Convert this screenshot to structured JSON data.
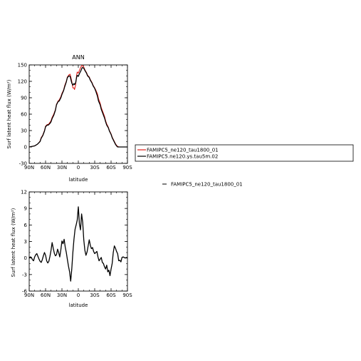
{
  "chart_data": [
    {
      "type": "line",
      "title": "ANN",
      "xlabel": "latitude",
      "ylabel": "Surf latent heat flux (W/m²)",
      "xlim": [
        90,
        -90
      ],
      "ylim": [
        -30,
        150
      ],
      "x_ticks": [
        90,
        60,
        30,
        0,
        -30,
        -60,
        -90
      ],
      "x_tick_labels": [
        "90N",
        "60N",
        "30N",
        "0",
        "30S",
        "60S",
        "90S"
      ],
      "y_ticks": [
        -30,
        0,
        30,
        60,
        90,
        120,
        150
      ],
      "y_tick_labels": [
        "-30",
        "0",
        "30",
        "60",
        "90",
        "120",
        "150"
      ],
      "legend_position": "right, boxed",
      "x": [
        90,
        85,
        80,
        75,
        72,
        70,
        68,
        65,
        62,
        60,
        57,
        55,
        52,
        50,
        48,
        45,
        42,
        40,
        37,
        35,
        32,
        30,
        27,
        25,
        22,
        20,
        17,
        15,
        12,
        10,
        8,
        7,
        5,
        3,
        2,
        0,
        -2,
        -5,
        -7,
        -8,
        -10,
        -12,
        -15,
        -17,
        -20,
        -22,
        -25,
        -27,
        -30,
        -32,
        -35,
        -37,
        -40,
        -42,
        -45,
        -48,
        -50,
        -52,
        -55,
        -57,
        -60,
        -62,
        -65,
        -68,
        -70,
        -72,
        -75,
        -80,
        -85,
        -90
      ],
      "series": [
        {
          "name": "FAMIPC5_ne120_tau1800_01",
          "color": "#e0201b",
          "values": [
            0,
            1,
            2,
            5,
            8,
            11,
            17,
            22,
            30,
            38,
            41,
            41,
            45,
            48,
            54,
            60,
            68,
            78,
            84,
            86,
            92,
            98,
            104,
            112,
            120,
            128,
            132,
            133,
            120,
            108,
            108,
            105,
            113,
            132,
            137,
            135,
            140,
            147,
            149,
            148,
            146,
            141,
            136,
            131,
            128,
            123,
            118,
            113,
            108,
            104,
            97,
            88,
            80,
            72,
            64,
            56,
            48,
            42,
            36,
            30,
            24,
            18,
            12,
            6,
            3,
            1,
            0,
            0,
            0,
            0
          ]
        },
        {
          "name": "FAMIPC5.ne120.ys.tau5m.02",
          "color": "#000000",
          "values": [
            0,
            1,
            2,
            5,
            8,
            10,
            16,
            21,
            29,
            37,
            40,
            40,
            43,
            46,
            52,
            58,
            67,
            77,
            83,
            84,
            90,
            96,
            103,
            110,
            119,
            127,
            130,
            129,
            117,
            113,
            116,
            114,
            117,
            128,
            131,
            129,
            134,
            140,
            145,
            145,
            144,
            140,
            135,
            130,
            127,
            122,
            117,
            112,
            107,
            102,
            93,
            84,
            77,
            69,
            61,
            53,
            46,
            40,
            35,
            29,
            23,
            17,
            11,
            5,
            2,
            0,
            0,
            0,
            0,
            0
          ]
        }
      ]
    },
    {
      "type": "line",
      "title": "",
      "xlabel": "latitude",
      "ylabel": "Surf latent heat flux (W/m²)",
      "xlim": [
        90,
        -90
      ],
      "ylim": [
        -6,
        12
      ],
      "x_ticks": [
        90,
        60,
        30,
        0,
        -30,
        -60,
        -90
      ],
      "x_tick_labels": [
        "90N",
        "60N",
        "30N",
        "0",
        "30S",
        "60S",
        "90S"
      ],
      "y_ticks": [
        -6,
        -3,
        0,
        3,
        6,
        9,
        12
      ],
      "y_tick_labels": [
        "-6",
        "-3",
        "0",
        "3",
        "6",
        "9",
        "12"
      ],
      "legend_position": "right",
      "x": [
        90,
        88,
        86,
        84,
        82,
        80,
        78,
        76,
        74,
        72,
        70,
        68,
        66,
        64,
        62,
        60,
        58,
        56,
        54,
        52,
        50,
        48,
        46,
        44,
        42,
        40,
        38,
        36,
        34,
        32,
        30,
        28,
        26,
        24,
        22,
        20,
        18,
        16,
        14,
        12,
        10,
        8,
        6,
        4,
        2,
        0,
        -2,
        -4,
        -6,
        -8,
        -10,
        -12,
        -14,
        -16,
        -18,
        -20,
        -22,
        -24,
        -26,
        -28,
        -30,
        -32,
        -34,
        -36,
        -38,
        -40,
        -42,
        -44,
        -46,
        -48,
        -50,
        -52,
        -54,
        -56,
        -58,
        -60,
        -62,
        -64,
        -66,
        -68,
        -70,
        -72,
        -74,
        -76,
        -78,
        -80,
        -82,
        -84,
        -86,
        -88,
        -90
      ],
      "series": [
        {
          "name": "FAMIPC5_ne120_tau1800_01",
          "color": "#000000",
          "values": [
            0,
            0.2,
            0.1,
            -0.3,
            -0.5,
            0.2,
            0.6,
            0.8,
            0.3,
            -0.2,
            -0.6,
            -0.8,
            -0.3,
            0.4,
            1.0,
            0.5,
            -0.5,
            -0.9,
            -0.6,
            0.3,
            1.4,
            2.8,
            1.8,
            0.9,
            0.4,
            0.6,
            1.6,
            1.0,
            0.2,
            1.5,
            3.1,
            2.6,
            3.4,
            2.0,
            1.0,
            -0.3,
            -1.5,
            -2.5,
            -4.2,
            -2.0,
            1.0,
            3.4,
            5.2,
            6.0,
            6.9,
            9.3,
            6.2,
            5.1,
            8.0,
            6.5,
            3.3,
            1.4,
            0.5,
            1.1,
            2.2,
            3.3,
            2.3,
            1.7,
            1.9,
            1.2,
            0.8,
            1.0,
            1.2,
            0.2,
            -0.5,
            -0.2,
            0.1,
            -0.8,
            -1.0,
            -1.6,
            -2.0,
            -1.3,
            -2.5,
            -2.2,
            -3.2,
            -2.0,
            -1.0,
            1.0,
            2.2,
            1.8,
            1.2,
            0.8,
            -0.5,
            -0.4,
            -0.7,
            0.1,
            0.2,
            0.1,
            0.0,
            0.1,
            0.0
          ]
        }
      ]
    }
  ]
}
